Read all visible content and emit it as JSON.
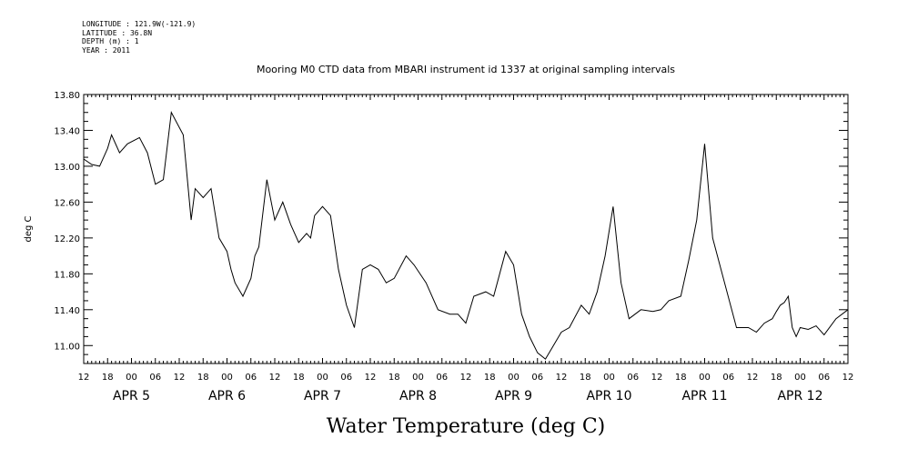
{
  "meta": {
    "longitude": "LONGITUDE : 121.9W(-121.9)",
    "latitude": "LATITUDE : 36.8N",
    "depth": "DEPTH (m) : 1",
    "year": "YEAR : 2011"
  },
  "chart_data": {
    "type": "line",
    "title": "Mooring M0 CTD data from MBARI instrument id 1337 at original sampling intervals",
    "bottom_title": "Water Temperature (deg C)",
    "xlabel": "",
    "ylabel": "deg C",
    "ylim": [
      10.8,
      13.8
    ],
    "xlim": [
      "2011-04-04T12:00",
      "2011-04-12T12:00"
    ],
    "y_ticks": [
      "11.00",
      "11.40",
      "11.80",
      "12.20",
      "12.60",
      "13.00",
      "13.40",
      "13.80"
    ],
    "x_hour_ticks": [
      "12",
      "18",
      "00",
      "06",
      "12",
      "18",
      "00",
      "06",
      "12",
      "18",
      "00",
      "06",
      "12",
      "18",
      "00",
      "06",
      "12",
      "18",
      "00",
      "06",
      "12",
      "18",
      "00",
      "06",
      "12",
      "18",
      "00",
      "06",
      "12",
      "18",
      "00",
      "06",
      "12"
    ],
    "x_day_labels": [
      "APR  5",
      "APR  6",
      "APR  7",
      "APR  8",
      "APR  9",
      "APR 10",
      "APR 11",
      "APR 12"
    ],
    "grid": false,
    "series": [
      {
        "x": [
          "2011-04-04T12:00",
          "2011-04-04T14:00",
          "2011-04-04T16:00",
          "2011-04-04T18:00",
          "2011-04-04T19:00",
          "2011-04-04T21:00",
          "2011-04-04T23:00",
          "2011-04-05T02:00",
          "2011-04-05T04:00",
          "2011-04-05T06:00",
          "2011-04-05T08:00",
          "2011-04-05T10:00",
          "2011-04-05T13:00",
          "2011-04-05T15:00",
          "2011-04-05T16:00",
          "2011-04-05T18:00",
          "2011-04-05T20:00",
          "2011-04-05T22:00",
          "2011-04-06T00:00",
          "2011-04-06T01:00",
          "2011-04-06T02:00",
          "2011-04-06T04:00",
          "2011-04-06T06:00",
          "2011-04-06T07:00",
          "2011-04-06T08:00",
          "2011-04-06T10:00",
          "2011-04-06T12:00",
          "2011-04-06T14:00",
          "2011-04-06T16:00",
          "2011-04-06T18:00",
          "2011-04-06T20:00",
          "2011-04-06T21:00",
          "2011-04-06T22:00",
          "2011-04-07T00:00",
          "2011-04-07T02:00",
          "2011-04-07T04:00",
          "2011-04-07T06:00",
          "2011-04-07T08:00",
          "2011-04-07T10:00",
          "2011-04-07T12:00",
          "2011-04-07T14:00",
          "2011-04-07T16:00",
          "2011-04-07T18:00",
          "2011-04-07T21:00",
          "2011-04-07T23:00",
          "2011-04-08T02:00",
          "2011-04-08T05:00",
          "2011-04-08T08:00",
          "2011-04-08T10:00",
          "2011-04-08T12:00",
          "2011-04-08T14:00",
          "2011-04-08T17:00",
          "2011-04-08T19:00",
          "2011-04-08T22:00",
          "2011-04-09T00:00",
          "2011-04-09T02:00",
          "2011-04-09T04:00",
          "2011-04-09T06:00",
          "2011-04-09T08:00",
          "2011-04-09T10:00",
          "2011-04-09T12:00",
          "2011-04-09T14:00",
          "2011-04-09T17:00",
          "2011-04-09T19:00",
          "2011-04-09T21:00",
          "2011-04-09T23:00",
          "2011-04-10T01:00",
          "2011-04-10T03:00",
          "2011-04-10T05:00",
          "2011-04-10T08:00",
          "2011-04-10T11:00",
          "2011-04-10T13:00",
          "2011-04-10T15:00",
          "2011-04-10T18:00",
          "2011-04-10T20:00",
          "2011-04-10T22:00",
          "2011-04-11T00:00",
          "2011-04-11T02:00",
          "2011-04-11T05:00",
          "2011-04-11T08:00",
          "2011-04-11T11:00",
          "2011-04-11T13:00",
          "2011-04-11T15:00",
          "2011-04-11T17:00",
          "2011-04-11T18:00",
          "2011-04-11T19:00",
          "2011-04-11T20:00",
          "2011-04-11T21:00",
          "2011-04-11T22:00",
          "2011-04-11T23:00",
          "2011-04-12T00:00",
          "2011-04-12T02:00",
          "2011-04-12T04:00",
          "2011-04-12T06:00",
          "2011-04-12T09:00",
          "2011-04-12T12:00"
        ],
        "y": [
          13.08,
          13.02,
          13.0,
          13.2,
          13.35,
          13.15,
          13.25,
          13.32,
          13.15,
          12.8,
          12.85,
          13.6,
          13.35,
          12.4,
          12.75,
          12.65,
          12.75,
          12.2,
          12.05,
          11.85,
          11.7,
          11.55,
          11.75,
          12.0,
          12.1,
          12.85,
          12.4,
          12.6,
          12.35,
          12.15,
          12.25,
          12.2,
          12.45,
          12.55,
          12.45,
          11.85,
          11.45,
          11.2,
          11.85,
          11.9,
          11.85,
          11.7,
          11.75,
          12.0,
          11.9,
          11.7,
          11.4,
          11.35,
          11.35,
          11.25,
          11.55,
          11.6,
          11.55,
          12.05,
          11.9,
          11.35,
          11.1,
          10.92,
          10.85,
          11.0,
          11.15,
          11.2,
          11.45,
          11.35,
          11.6,
          12.0,
          12.55,
          11.7,
          11.3,
          11.4,
          11.38,
          11.4,
          11.5,
          11.55,
          11.95,
          12.4,
          13.25,
          12.2,
          11.7,
          11.2,
          11.2,
          11.15,
          11.25,
          11.3,
          11.38,
          11.45,
          11.48,
          11.55,
          11.2,
          11.1,
          11.2,
          11.18,
          11.22,
          11.12,
          11.3,
          11.4
        ]
      }
    ]
  }
}
